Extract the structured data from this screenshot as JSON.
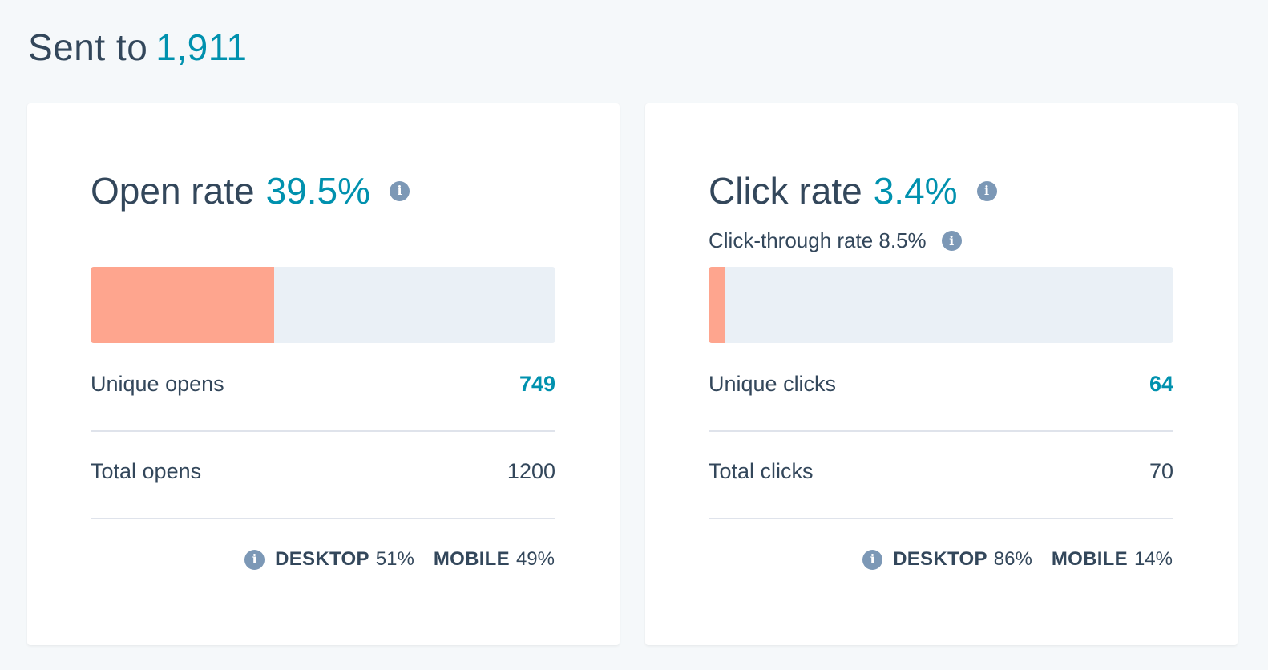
{
  "header": {
    "label": "Sent to",
    "count": "1,911"
  },
  "open_card": {
    "title": "Open rate",
    "rate": "39.5%",
    "rate_fraction": 0.395,
    "row1": {
      "label": "Unique opens",
      "value": "749"
    },
    "row2": {
      "label": "Total opens",
      "value": "1200"
    },
    "desktop": {
      "label": "DESKTOP",
      "value": "51%"
    },
    "mobile": {
      "label": "MOBILE",
      "value": "49%"
    }
  },
  "click_card": {
    "title": "Click rate",
    "rate": "3.4%",
    "rate_fraction": 0.034,
    "subtitle": "Click-through rate 8.5%",
    "row1": {
      "label": "Unique clicks",
      "value": "64"
    },
    "row2": {
      "label": "Total clicks",
      "value": "70"
    },
    "desktop": {
      "label": "DESKTOP",
      "value": "86%"
    },
    "mobile": {
      "label": "MOBILE",
      "value": "14%"
    }
  },
  "icons": {
    "info": "info-icon"
  },
  "colors": {
    "accent": "#0091ae",
    "bar_fill": "#fea58e",
    "bar_track": "#eaf0f6",
    "text": "#33475b",
    "icon": "#7c98b6"
  }
}
